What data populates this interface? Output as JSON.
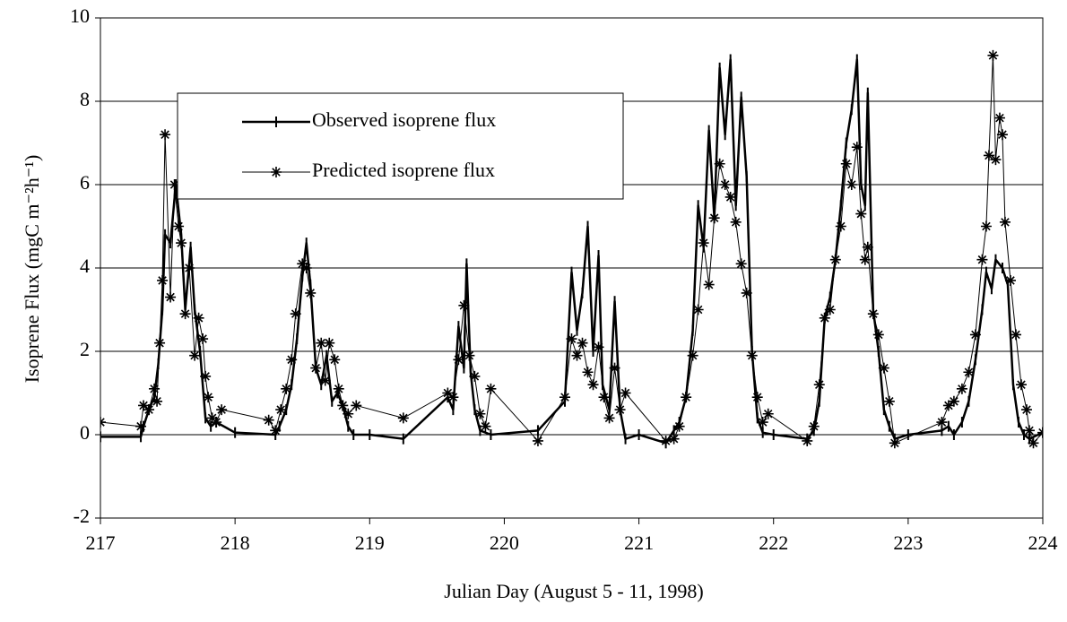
{
  "chart_data": {
    "type": "line",
    "x_label": "Julian Day (August 5 - 11, 1998)",
    "y_label": "Isoprene Flux (mgC m⁻²h⁻¹)",
    "xlim": [
      217,
      224
    ],
    "xticks": [
      217,
      218,
      219,
      220,
      221,
      222,
      223,
      224
    ],
    "ylim": [
      -2,
      10
    ],
    "yticks": [
      -2,
      0,
      2,
      4,
      6,
      8,
      10
    ],
    "grid": true,
    "legend": "upper left",
    "series": [
      {
        "name": "Observed isoprene flux",
        "color": "#000000",
        "marker": "tick",
        "line_width": 2.5,
        "x": [
          217.0,
          217.3,
          217.32,
          217.36,
          217.4,
          217.43,
          217.46,
          217.48,
          217.52,
          217.56,
          217.6,
          217.63,
          217.67,
          217.7,
          217.74,
          217.78,
          217.82,
          217.86,
          218.0,
          218.3,
          218.33,
          218.38,
          218.42,
          218.46,
          218.5,
          218.53,
          218.56,
          218.6,
          218.64,
          218.68,
          218.72,
          218.76,
          218.8,
          218.84,
          218.88,
          219.0,
          219.25,
          219.58,
          219.62,
          219.66,
          219.7,
          219.72,
          219.75,
          219.78,
          219.82,
          219.9,
          220.25,
          220.45,
          220.5,
          220.54,
          220.58,
          220.62,
          220.66,
          220.7,
          220.73,
          220.78,
          220.82,
          220.86,
          220.9,
          221.0,
          221.2,
          221.26,
          221.3,
          221.35,
          221.4,
          221.44,
          221.48,
          221.52,
          221.56,
          221.6,
          221.64,
          221.68,
          221.72,
          221.76,
          221.8,
          221.84,
          221.88,
          221.92,
          222.0,
          222.25,
          222.3,
          222.34,
          222.38,
          222.42,
          222.46,
          222.5,
          222.54,
          222.58,
          222.62,
          222.65,
          222.68,
          222.7,
          222.74,
          222.78,
          222.82,
          222.86,
          222.9,
          223.0,
          223.25,
          223.3,
          223.34,
          223.4,
          223.45,
          223.5,
          223.55,
          223.58,
          223.62,
          223.65,
          223.7,
          223.74,
          223.78,
          223.82,
          223.86,
          223.9,
          224.0
        ],
        "values": [
          -0.05,
          -0.05,
          0.2,
          0.6,
          0.9,
          1.7,
          3.0,
          4.8,
          4.6,
          6.0,
          4.8,
          3.0,
          4.5,
          3.0,
          2.0,
          0.4,
          0.2,
          0.3,
          0.05,
          0.0,
          0.2,
          0.6,
          1.2,
          2.3,
          3.8,
          4.6,
          3.6,
          1.6,
          1.2,
          1.9,
          0.8,
          1.0,
          0.7,
          0.2,
          0.0,
          0.0,
          -0.1,
          0.9,
          0.6,
          2.6,
          1.6,
          4.1,
          1.5,
          0.6,
          0.1,
          0.0,
          0.1,
          0.8,
          3.9,
          2.5,
          3.4,
          5.0,
          2.0,
          4.3,
          1.2,
          0.6,
          3.2,
          0.6,
          -0.1,
          0.0,
          -0.2,
          0.1,
          0.3,
          0.9,
          2.5,
          5.5,
          4.5,
          7.3,
          5.2,
          8.8,
          7.2,
          9.0,
          5.5,
          8.1,
          6.2,
          2.0,
          0.4,
          0.05,
          0.0,
          -0.1,
          0.1,
          0.8,
          2.8,
          3.3,
          4.2,
          5.5,
          7.0,
          7.8,
          9.0,
          6.0,
          5.5,
          8.2,
          3.0,
          2.0,
          0.6,
          0.2,
          -0.1,
          0.0,
          0.1,
          0.2,
          0.0,
          0.3,
          0.8,
          1.8,
          3.0,
          3.9,
          3.5,
          4.2,
          4.0,
          3.6,
          1.2,
          0.3,
          0.0,
          -0.1,
          0.05
        ]
      },
      {
        "name": "Predicted isoprene flux",
        "color": "#000000",
        "marker": "asterisk",
        "line_width": 1,
        "x": [
          217.0,
          217.3,
          217.32,
          217.36,
          217.4,
          217.42,
          217.44,
          217.46,
          217.48,
          217.52,
          217.55,
          217.58,
          217.6,
          217.63,
          217.66,
          217.7,
          217.73,
          217.76,
          217.78,
          217.8,
          217.83,
          217.86,
          217.9,
          218.25,
          218.3,
          218.34,
          218.38,
          218.42,
          218.45,
          218.5,
          218.53,
          218.56,
          218.6,
          218.64,
          218.67,
          218.7,
          218.74,
          218.77,
          218.8,
          218.84,
          218.9,
          219.25,
          219.58,
          219.62,
          219.66,
          219.7,
          219.74,
          219.78,
          219.82,
          219.86,
          219.9,
          220.25,
          220.45,
          220.5,
          220.54,
          220.58,
          220.62,
          220.66,
          220.7,
          220.74,
          220.78,
          220.82,
          220.86,
          220.9,
          221.2,
          221.26,
          221.3,
          221.35,
          221.4,
          221.44,
          221.48,
          221.52,
          221.56,
          221.6,
          221.64,
          221.68,
          221.72,
          221.76,
          221.8,
          221.84,
          221.88,
          221.92,
          221.96,
          222.25,
          222.3,
          222.34,
          222.38,
          222.42,
          222.46,
          222.5,
          222.54,
          222.58,
          222.62,
          222.65,
          222.68,
          222.7,
          222.74,
          222.78,
          222.82,
          222.86,
          222.9,
          223.25,
          223.3,
          223.34,
          223.4,
          223.45,
          223.5,
          223.55,
          223.58,
          223.6,
          223.63,
          223.65,
          223.68,
          223.7,
          223.72,
          223.76,
          223.8,
          223.84,
          223.88,
          223.9,
          223.93,
          224.0
        ],
        "values": [
          0.3,
          0.2,
          0.7,
          0.6,
          1.1,
          0.8,
          2.2,
          3.7,
          7.2,
          3.3,
          6.0,
          5.0,
          4.6,
          2.9,
          4.0,
          1.9,
          2.8,
          2.3,
          1.4,
          0.9,
          0.4,
          0.3,
          0.6,
          0.35,
          0.1,
          0.6,
          1.1,
          1.8,
          2.9,
          4.1,
          4.0,
          3.4,
          1.6,
          2.2,
          1.3,
          2.2,
          1.8,
          1.1,
          0.7,
          0.5,
          0.7,
          0.4,
          1.0,
          0.9,
          1.8,
          3.1,
          1.9,
          1.4,
          0.5,
          0.2,
          1.1,
          -0.15,
          0.9,
          2.3,
          1.9,
          2.2,
          1.5,
          1.2,
          2.1,
          0.9,
          0.4,
          1.6,
          0.6,
          1.0,
          -0.15,
          -0.1,
          0.2,
          0.9,
          1.9,
          3.0,
          4.6,
          3.6,
          5.2,
          6.5,
          6.0,
          5.7,
          5.1,
          4.1,
          3.4,
          1.9,
          0.9,
          0.3,
          0.5,
          -0.15,
          0.2,
          1.2,
          2.8,
          3.0,
          4.2,
          5.0,
          6.5,
          6.0,
          6.9,
          5.3,
          4.2,
          4.5,
          2.9,
          2.4,
          1.6,
          0.8,
          -0.2,
          0.3,
          0.7,
          0.8,
          1.1,
          1.5,
          2.4,
          4.2,
          5.0,
          6.7,
          9.1,
          6.6,
          7.6,
          7.2,
          5.1,
          3.7,
          2.4,
          1.2,
          0.6,
          0.1,
          -0.2,
          0.05
        ]
      }
    ]
  }
}
